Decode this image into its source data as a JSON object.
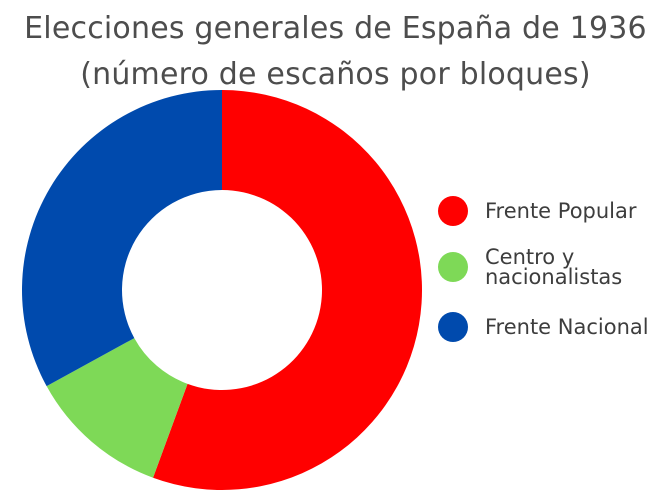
{
  "chart_data": {
    "type": "pie",
    "variant": "donut",
    "title_lines": [
      "Elecciones generales de España de 1936",
      "(número de escaños por bloques)"
    ],
    "categories": [
      "Frente Popular",
      "Centro y\nnacionalistas",
      "Frente Nacional"
    ],
    "values": [
      263,
      54,
      156
    ],
    "colors": [
      "#ff0000",
      "#7ed957",
      "#004aad"
    ],
    "legend_position": "right",
    "start_angle_deg": 0,
    "direction": "clockwise"
  }
}
